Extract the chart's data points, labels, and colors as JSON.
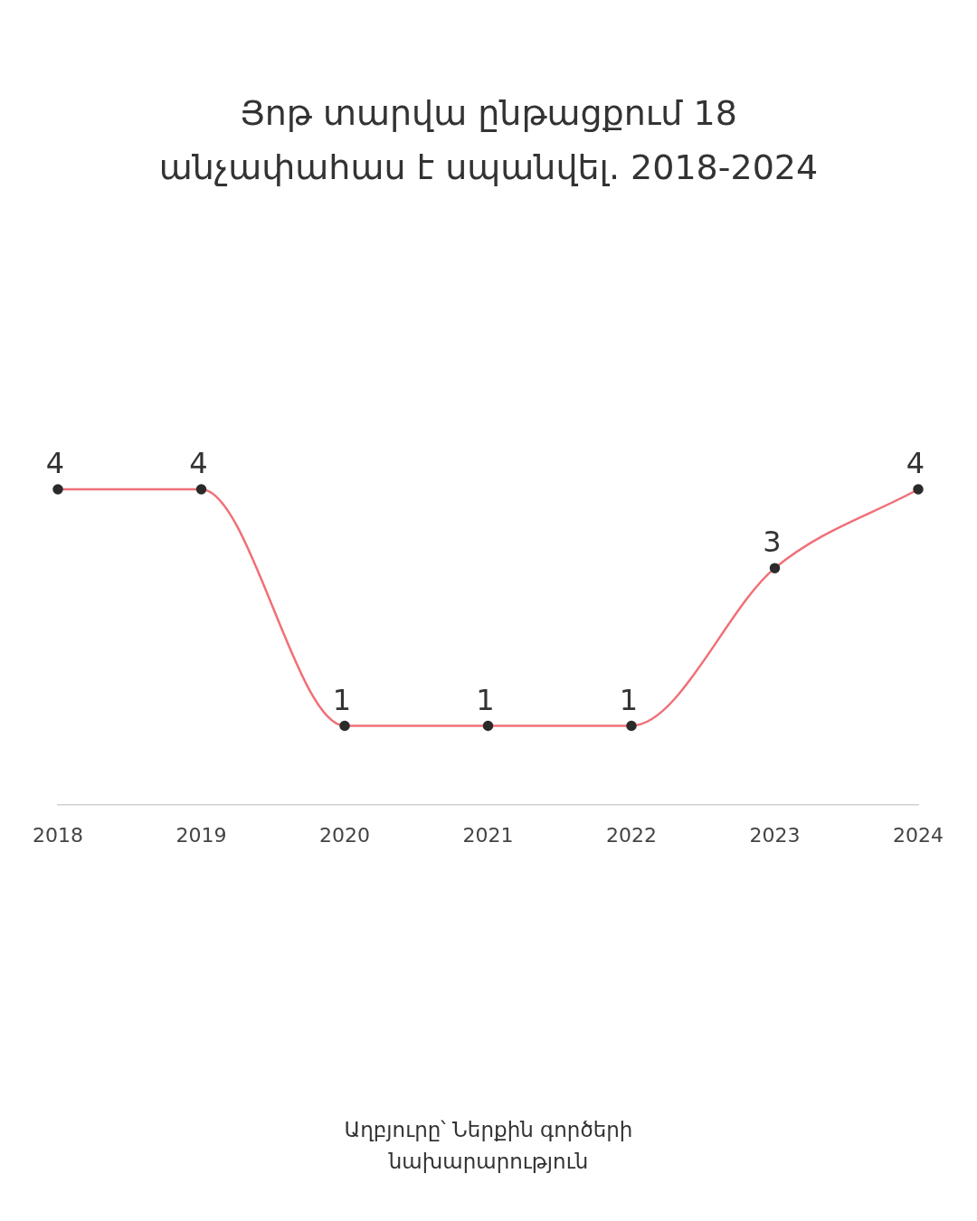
{
  "chart_data": {
    "type": "line",
    "title": "Յոթ տարվա ընթացքում 18 անչափահաս է սպանվել. 2018-2024",
    "categories": [
      "2018",
      "2019",
      "2020",
      "2021",
      "2022",
      "2023",
      "2024"
    ],
    "values": [
      4,
      4,
      1,
      1,
      1,
      3,
      4
    ],
    "color": "#f07077",
    "marker": "circle",
    "data_labels": true,
    "grid": false,
    "legend": false,
    "annotations": [
      "Աղբյուրը՝ Ներքին գործերի նախարարություն"
    ]
  }
}
